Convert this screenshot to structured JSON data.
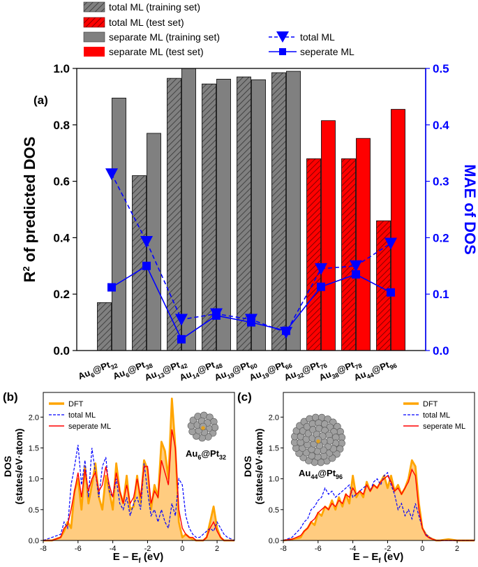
{
  "colors": {
    "gray": "#808080",
    "red": "#ff0000",
    "blue": "#0000ff",
    "orange": "#ffa500",
    "fill": "#ffcc80",
    "axis_right": "#0000ff"
  },
  "chart_data": [
    {
      "id": "a",
      "panel_label": "(a)",
      "type": "bar+line",
      "categories": [
        {
          "main": "Au",
          "s1": "6",
          "mid": "@Pt",
          "s2": "32"
        },
        {
          "main": "Au",
          "s1": "6",
          "mid": "@Pt",
          "s2": "38"
        },
        {
          "main": "Au",
          "s1": "13",
          "mid": "@Pt",
          "s2": "42"
        },
        {
          "main": "Au",
          "s1": "14",
          "mid": "@Pt",
          "s2": "48"
        },
        {
          "main": "Au",
          "s1": "19",
          "mid": "@Pt",
          "s2": "60"
        },
        {
          "main": "Au",
          "s1": "19",
          "mid": "@Pt",
          "s2": "66"
        },
        {
          "main": "Au",
          "s1": "32",
          "mid": "@Pt",
          "s2": "76"
        },
        {
          "main": "Au",
          "s1": "38",
          "mid": "@Pt",
          "s2": "78"
        },
        {
          "main": "Au",
          "s1": "44",
          "mid": "@Pt",
          "s2": "96"
        }
      ],
      "bar_series": [
        {
          "name": "total ML",
          "values": [
            0.17,
            0.62,
            0.965,
            0.945,
            0.97,
            0.985,
            0.68,
            0.68,
            0.46
          ],
          "hatched": true
        },
        {
          "name": "separate ML",
          "values": [
            0.895,
            0.77,
            1.0,
            0.962,
            0.96,
            0.99,
            0.815,
            0.752,
            0.855
          ],
          "hatched": false
        }
      ],
      "split": {
        "training_set_count": 6,
        "test_set_count": 3
      },
      "line_series": [
        {
          "name": "total ML",
          "marker": "triangle-down",
          "dashed": true,
          "values": [
            0.313,
            0.193,
            0.055,
            0.065,
            0.055,
            0.032,
            0.145,
            0.15,
            0.19
          ]
        },
        {
          "name": "seperate ML",
          "marker": "square",
          "dashed": false,
          "values": [
            0.112,
            0.15,
            0.02,
            0.062,
            0.05,
            0.035,
            0.113,
            0.135,
            0.103
          ]
        }
      ],
      "ylabel_left": {
        "base": "R",
        "sup": "2",
        "rest": " of predicted DOS"
      },
      "ylabel_right": "MAE of DOS",
      "ylim_left": [
        0,
        1.0
      ],
      "ylim_right": [
        0,
        0.5
      ],
      "yticks_left": [
        "0.0",
        "0.2",
        "0.4",
        "0.6",
        "0.8",
        "1.0"
      ],
      "yticks_right": [
        "0.0",
        "0.1",
        "0.2",
        "0.3",
        "0.4",
        "0.5"
      ],
      "legend": [
        {
          "label": "total ML (training set)",
          "swatch": "gray-hatch"
        },
        {
          "label": "total ML (test set)",
          "swatch": "red-hatch"
        },
        {
          "label": "separate ML (training set)",
          "swatch": "gray"
        },
        {
          "label": "separate ML (test set)",
          "swatch": "red"
        },
        {
          "label": "total ML",
          "swatch": "line-tri"
        },
        {
          "label": "seperate ML",
          "swatch": "line-sq"
        }
      ]
    },
    {
      "id": "b",
      "panel_label": "(b)",
      "type": "line",
      "xlabel": "E – E_f (eV)",
      "ylabel_1": "DOS",
      "ylabel_2": "(states/eV·atom)",
      "xlim": [
        -8,
        3
      ],
      "ylim": [
        0,
        2.4
      ],
      "xticks": [
        "-8",
        "-6",
        "-4",
        "-2",
        "0",
        "2"
      ],
      "yticks": [
        "0.0",
        "0.5",
        "1.0",
        "1.5",
        "2.0"
      ],
      "cluster_label": {
        "main": "Au",
        "s1": "6",
        "mid": "@Pt",
        "s2": "32"
      },
      "legend": [
        "DFT",
        "total ML",
        "seperate ML"
      ],
      "series": [
        {
          "name": "DFT",
          "x": [
            -8,
            -7.5,
            -7,
            -6.8,
            -6.6,
            -6.4,
            -6.2,
            -6,
            -5.8,
            -5.6,
            -5.4,
            -5.2,
            -5,
            -4.8,
            -4.6,
            -4.4,
            -4.2,
            -4,
            -3.8,
            -3.6,
            -3.4,
            -3.2,
            -3,
            -2.8,
            -2.6,
            -2.4,
            -2.2,
            -2,
            -1.8,
            -1.6,
            -1.4,
            -1.2,
            -1,
            -0.8,
            -0.6,
            -0.4,
            -0.2,
            0,
            0.2,
            0.4,
            0.6,
            0.8,
            1,
            1.2,
            1.4,
            1.6,
            1.8,
            2,
            2.2,
            2.4,
            2.6,
            3
          ],
          "y": [
            0.0,
            0.0,
            0.05,
            0.15,
            0.3,
            0.2,
            0.8,
            1.0,
            0.5,
            1.2,
            0.6,
            0.9,
            1.25,
            0.7,
            0.5,
            1.05,
            0.8,
            0.5,
            1.25,
            0.8,
            0.6,
            1.05,
            0.5,
            0.55,
            1.05,
            0.6,
            1.3,
            1.15,
            0.5,
            0.9,
            0.7,
            1.6,
            1.45,
            1.0,
            2.3,
            1.5,
            0.3,
            0.05,
            0.1,
            0.05,
            0.02,
            0.0,
            0.0,
            0.0,
            0.05,
            0.3,
            0.55,
            0.2,
            0.05,
            0.0,
            0.0,
            0.0
          ]
        },
        {
          "name": "total ML",
          "x": [
            -8,
            -7.5,
            -7,
            -6.8,
            -6.6,
            -6.4,
            -6.2,
            -6,
            -5.8,
            -5.6,
            -5.4,
            -5.2,
            -5,
            -4.8,
            -4.6,
            -4.4,
            -4.2,
            -4,
            -3.8,
            -3.6,
            -3.4,
            -3.2,
            -3,
            -2.8,
            -2.6,
            -2.4,
            -2.2,
            -2,
            -1.8,
            -1.6,
            -1.4,
            -1.2,
            -1,
            -0.8,
            -0.6,
            -0.4,
            -0.2,
            0,
            0.2,
            0.4,
            0.6,
            0.8,
            1,
            1.2,
            1.4,
            1.6,
            1.8,
            2,
            2.2,
            2.4,
            2.6,
            3
          ],
          "y": [
            0.0,
            0.05,
            0.1,
            0.3,
            0.2,
            0.9,
            1.2,
            1.55,
            0.9,
            1.3,
            0.7,
            1.5,
            1.1,
            0.7,
            1.2,
            1.35,
            0.8,
            0.7,
            1.0,
            0.6,
            0.5,
            0.7,
            0.4,
            0.6,
            0.7,
            0.5,
            1.25,
            0.8,
            0.4,
            0.5,
            0.3,
            0.5,
            0.3,
            0.2,
            0.6,
            0.4,
            1.0,
            0.9,
            0.4,
            0.2,
            0.1,
            0.05,
            0.05,
            0.1,
            0.15,
            0.2,
            0.15,
            0.3,
            0.2,
            0.1,
            0.05,
            0.0
          ]
        },
        {
          "name": "seperate ML",
          "x": [
            -8,
            -7.5,
            -7,
            -6.8,
            -6.6,
            -6.4,
            -6.2,
            -6,
            -5.8,
            -5.6,
            -5.4,
            -5.2,
            -5,
            -4.8,
            -4.6,
            -4.4,
            -4.2,
            -4,
            -3.8,
            -3.6,
            -3.4,
            -3.2,
            -3,
            -2.8,
            -2.6,
            -2.4,
            -2.2,
            -2,
            -1.8,
            -1.6,
            -1.4,
            -1.2,
            -1,
            -0.8,
            -0.6,
            -0.4,
            -0.2,
            0,
            0.2,
            0.4,
            0.6,
            0.8,
            1,
            1.2,
            1.4,
            1.6,
            1.8,
            2,
            2.2,
            2.4,
            2.6,
            3
          ],
          "y": [
            0.0,
            0.0,
            0.05,
            0.2,
            0.25,
            0.5,
            0.8,
            1.1,
            0.7,
            1.15,
            0.8,
            1.0,
            1.1,
            0.8,
            0.9,
            1.2,
            0.9,
            0.7,
            1.1,
            0.8,
            0.6,
            0.9,
            0.6,
            0.7,
            1.0,
            0.7,
            1.2,
            1.2,
            0.6,
            0.8,
            0.7,
            1.3,
            1.1,
            0.9,
            1.8,
            1.5,
            0.5,
            0.2,
            0.1,
            0.05,
            0.05,
            0.0,
            0.0,
            0.0,
            0.05,
            0.2,
            0.3,
            0.15,
            0.05,
            0.0,
            0.0,
            0.0
          ]
        }
      ]
    },
    {
      "id": "c",
      "panel_label": "(c)",
      "type": "line",
      "xlabel": "E – E_f (eV)",
      "ylabel_1": "DOS",
      "ylabel_2": "(states/eV·atom)",
      "xlim": [
        -8,
        3
      ],
      "ylim": [
        0,
        2.4
      ],
      "xticks": [
        "-8",
        "-6",
        "-4",
        "-2",
        "0",
        "2"
      ],
      "yticks": [
        "0.0",
        "0.5",
        "1.0",
        "1.5",
        "2.0"
      ],
      "cluster_label": {
        "main": "Au",
        "s1": "44",
        "mid": "@Pt",
        "s2": "96"
      },
      "legend": [
        "DFT",
        "total ML",
        "seperate ML"
      ],
      "series": [
        {
          "name": "DFT",
          "x": [
            -8,
            -7.5,
            -7,
            -6.8,
            -6.6,
            -6.4,
            -6.2,
            -6,
            -5.8,
            -5.6,
            -5.4,
            -5.2,
            -5,
            -4.8,
            -4.6,
            -4.4,
            -4.2,
            -4,
            -3.8,
            -3.6,
            -3.4,
            -3.2,
            -3,
            -2.8,
            -2.6,
            -2.4,
            -2.2,
            -2,
            -1.8,
            -1.6,
            -1.4,
            -1.2,
            -1,
            -0.8,
            -0.6,
            -0.4,
            -0.2,
            0,
            0.2,
            0.4,
            0.6,
            0.8,
            1,
            1.5,
            2,
            2.5,
            3
          ],
          "y": [
            0.0,
            0.02,
            0.05,
            0.15,
            0.2,
            0.3,
            0.25,
            0.45,
            0.4,
            0.55,
            0.5,
            0.65,
            0.5,
            0.7,
            0.55,
            0.75,
            0.6,
            1.05,
            0.7,
            0.8,
            0.7,
            0.95,
            0.8,
            0.9,
            0.85,
            0.95,
            1.05,
            0.85,
            1.05,
            0.8,
            0.9,
            0.75,
            0.85,
            1.0,
            1.3,
            1.2,
            0.6,
            0.2,
            0.1,
            0.05,
            0.02,
            0.0,
            0.0,
            0.02,
            0.0,
            0.0,
            0.0
          ]
        },
        {
          "name": "total ML",
          "x": [
            -8,
            -7.5,
            -7,
            -6.8,
            -6.6,
            -6.4,
            -6.2,
            -6,
            -5.8,
            -5.6,
            -5.4,
            -5.2,
            -5,
            -4.8,
            -4.6,
            -4.4,
            -4.2,
            -4,
            -3.8,
            -3.6,
            -3.4,
            -3.2,
            -3,
            -2.8,
            -2.6,
            -2.4,
            -2.2,
            -2,
            -1.8,
            -1.6,
            -1.4,
            -1.2,
            -1,
            -0.8,
            -0.6,
            -0.4,
            -0.2,
            0,
            0.2,
            0.4,
            0.6,
            0.8,
            1,
            1.5,
            2,
            2.5,
            3
          ],
          "y": [
            0.0,
            0.05,
            0.2,
            0.3,
            0.35,
            0.5,
            0.55,
            0.65,
            0.7,
            0.85,
            0.75,
            0.8,
            0.7,
            0.75,
            0.8,
            0.85,
            0.9,
            0.7,
            0.75,
            0.8,
            0.85,
            0.9,
            0.8,
            0.95,
            1.0,
            0.9,
            1.05,
            1.1,
            0.9,
            0.75,
            0.5,
            0.6,
            0.4,
            0.5,
            0.35,
            0.6,
            0.4,
            0.2,
            0.1,
            0.05,
            0.02,
            0.0,
            0.0,
            0.0,
            0.0,
            0.0,
            0.0
          ]
        },
        {
          "name": "seperate ML",
          "x": [
            -8,
            -7.5,
            -7,
            -6.8,
            -6.6,
            -6.4,
            -6.2,
            -6,
            -5.8,
            -5.6,
            -5.4,
            -5.2,
            -5,
            -4.8,
            -4.6,
            -4.4,
            -4.2,
            -4,
            -3.8,
            -3.6,
            -3.4,
            -3.2,
            -3,
            -2.8,
            -2.6,
            -2.4,
            -2.2,
            -2,
            -1.8,
            -1.6,
            -1.4,
            -1.2,
            -1,
            -0.8,
            -0.6,
            -0.4,
            -0.2,
            0,
            0.2,
            0.4,
            0.6,
            0.8,
            1,
            1.5,
            2,
            2.5,
            3
          ],
          "y": [
            0.0,
            0.02,
            0.08,
            0.15,
            0.2,
            0.3,
            0.35,
            0.45,
            0.5,
            0.55,
            0.5,
            0.6,
            0.55,
            0.65,
            0.6,
            0.75,
            0.7,
            0.85,
            0.75,
            0.8,
            0.75,
            0.9,
            0.8,
            0.9,
            0.85,
            0.95,
            1.0,
            1.05,
            0.95,
            0.8,
            0.85,
            0.75,
            0.85,
            0.95,
            1.15,
            1.05,
            0.5,
            0.2,
            0.08,
            0.04,
            0.02,
            0.0,
            0.0,
            0.0,
            0.0,
            0.0,
            0.0
          ]
        }
      ]
    }
  ]
}
